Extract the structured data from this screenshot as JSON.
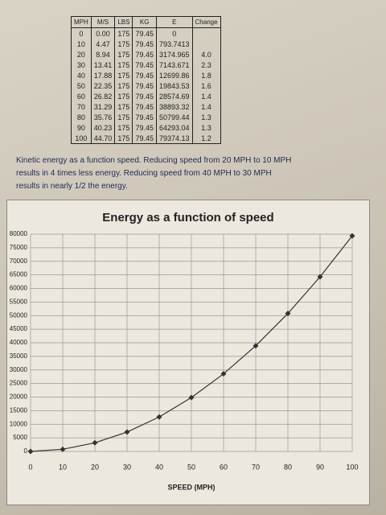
{
  "table": {
    "headers": [
      "MPH",
      "M/S",
      "LBS",
      "KG",
      "E",
      "Change"
    ],
    "rows": [
      [
        "0",
        "0.00",
        "175",
        "79.45",
        "0"
      ],
      [
        "10",
        "4.47",
        "175",
        "79.45",
        "793.7413"
      ],
      [
        "20",
        "8.94",
        "175",
        "79.45",
        "3174.965",
        "4.0"
      ],
      [
        "30",
        "13.41",
        "175",
        "79.45",
        "7143.671",
        "2.3"
      ],
      [
        "40",
        "17.88",
        "175",
        "79.45",
        "12699.86",
        "1.8"
      ],
      [
        "50",
        "22.35",
        "175",
        "79.45",
        "19843.53",
        "1.6"
      ],
      [
        "60",
        "26.82",
        "175",
        "79.45",
        "28574.69",
        "1.4"
      ],
      [
        "70",
        "31.29",
        "175",
        "79.45",
        "38893.32",
        "1.4"
      ],
      [
        "80",
        "35.76",
        "175",
        "79.45",
        "50799.44",
        "1.3"
      ],
      [
        "90",
        "40.23",
        "175",
        "79.45",
        "64293.04",
        "1.3"
      ],
      [
        "100",
        "44.70",
        "175",
        "79.45",
        "79374.13",
        "1.2"
      ]
    ]
  },
  "caption": [
    "Kinetic energy as a function speed. Reducing speed from 20 MPH to 10 MPH",
    "results in 4 times less energy. Reducing speed from 40 MPH to 30 MPH",
    "results in nearly 1/2 the energy."
  ],
  "chart_data": {
    "type": "line",
    "title": "Energy as a function of speed",
    "x_label": "SPEED (MPH)",
    "x": [
      0,
      10,
      20,
      30,
      40,
      50,
      60,
      70,
      80,
      90,
      100
    ],
    "values": [
      0,
      793.7413,
      3174.965,
      7143.671,
      12699.86,
      19843.53,
      28574.69,
      38893.32,
      50799.44,
      64293.04,
      79374.13
    ],
    "color": "#333333",
    "xlim": [
      0,
      100
    ],
    "xticks": [
      0,
      10,
      20,
      30,
      40,
      50,
      60,
      70,
      80,
      90,
      100
    ],
    "ylim": [
      0,
      80000
    ],
    "yticks": [
      0,
      5000,
      10000,
      15000,
      20000,
      25000,
      30000,
      35000,
      40000,
      45000,
      50000,
      55000,
      60000,
      65000,
      70000,
      75000,
      80000
    ],
    "grid": true
  }
}
